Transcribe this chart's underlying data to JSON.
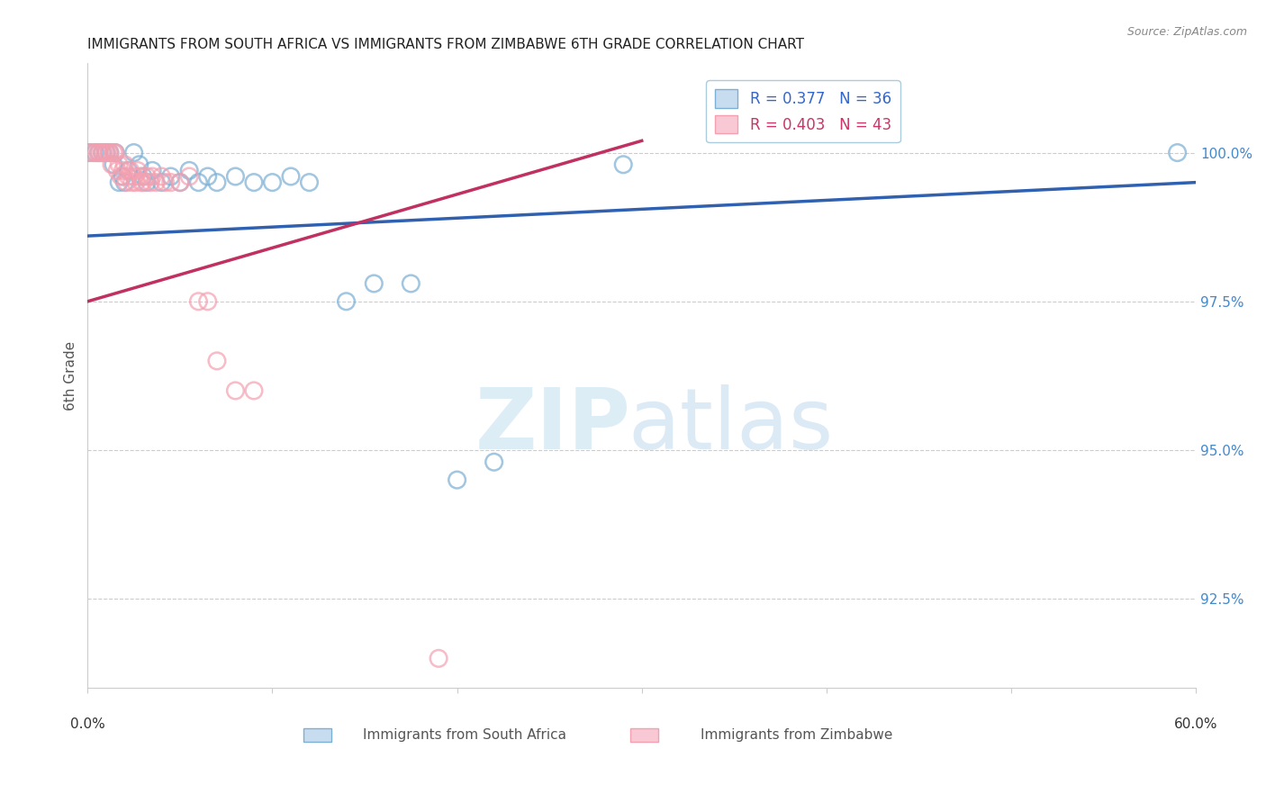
{
  "title": "IMMIGRANTS FROM SOUTH AFRICA VS IMMIGRANTS FROM ZIMBABWE 6TH GRADE CORRELATION CHART",
  "source": "Source: ZipAtlas.com",
  "ylabel": "6th Grade",
  "ytick_labels": [
    "92.5%",
    "95.0%",
    "97.5%",
    "100.0%"
  ],
  "ytick_values": [
    92.5,
    95.0,
    97.5,
    100.0
  ],
  "xmin": 0.0,
  "xmax": 60.0,
  "ymin": 91.0,
  "ymax": 101.5,
  "legend_blue_text": "R = 0.377   N = 36",
  "legend_pink_text": "R = 0.403   N = 43",
  "blue_color": "#7BAFD4",
  "pink_color": "#F4A0B0",
  "blue_line_color": "#3060B0",
  "pink_line_color": "#C03060",
  "blue_scatter": [
    [
      0.1,
      100.0
    ],
    [
      0.4,
      100.0
    ],
    [
      0.6,
      100.0
    ],
    [
      0.8,
      100.0
    ],
    [
      1.0,
      100.0
    ],
    [
      1.2,
      100.0
    ],
    [
      1.4,
      99.8
    ],
    [
      1.5,
      100.0
    ],
    [
      1.7,
      99.5
    ],
    [
      1.9,
      99.6
    ],
    [
      2.0,
      99.5
    ],
    [
      2.2,
      99.7
    ],
    [
      2.5,
      100.0
    ],
    [
      2.8,
      99.8
    ],
    [
      3.0,
      99.6
    ],
    [
      3.2,
      99.5
    ],
    [
      3.5,
      99.7
    ],
    [
      4.0,
      99.5
    ],
    [
      4.5,
      99.6
    ],
    [
      5.0,
      99.5
    ],
    [
      5.5,
      99.7
    ],
    [
      6.0,
      99.5
    ],
    [
      6.5,
      99.6
    ],
    [
      7.0,
      99.5
    ],
    [
      8.0,
      99.6
    ],
    [
      9.0,
      99.5
    ],
    [
      10.0,
      99.5
    ],
    [
      11.0,
      99.6
    ],
    [
      12.0,
      99.5
    ],
    [
      14.0,
      97.5
    ],
    [
      15.5,
      97.8
    ],
    [
      17.5,
      97.8
    ],
    [
      20.0,
      94.5
    ],
    [
      22.0,
      94.8
    ],
    [
      29.0,
      99.8
    ],
    [
      59.0,
      100.0
    ]
  ],
  "pink_scatter": [
    [
      0.1,
      100.0
    ],
    [
      0.3,
      100.0
    ],
    [
      0.5,
      100.0
    ],
    [
      0.6,
      100.0
    ],
    [
      0.7,
      100.0
    ],
    [
      0.8,
      100.0
    ],
    [
      0.9,
      100.0
    ],
    [
      1.0,
      100.0
    ],
    [
      1.1,
      100.0
    ],
    [
      1.2,
      100.0
    ],
    [
      1.3,
      99.8
    ],
    [
      1.4,
      100.0
    ],
    [
      1.5,
      100.0
    ],
    [
      1.6,
      99.7
    ],
    [
      1.7,
      99.8
    ],
    [
      1.8,
      99.6
    ],
    [
      1.9,
      99.7
    ],
    [
      2.0,
      99.8
    ],
    [
      2.1,
      99.5
    ],
    [
      2.2,
      99.6
    ],
    [
      2.3,
      99.7
    ],
    [
      2.4,
      99.5
    ],
    [
      2.5,
      99.6
    ],
    [
      2.6,
      99.5
    ],
    [
      2.7,
      99.7
    ],
    [
      2.8,
      99.6
    ],
    [
      2.9,
      99.5
    ],
    [
      3.0,
      99.5
    ],
    [
      3.2,
      99.6
    ],
    [
      3.4,
      99.5
    ],
    [
      3.5,
      99.6
    ],
    [
      3.7,
      99.5
    ],
    [
      4.0,
      99.6
    ],
    [
      4.2,
      99.5
    ],
    [
      4.5,
      99.5
    ],
    [
      5.0,
      99.5
    ],
    [
      5.5,
      99.6
    ],
    [
      6.0,
      97.5
    ],
    [
      6.5,
      97.5
    ],
    [
      7.0,
      96.5
    ],
    [
      8.0,
      96.0
    ],
    [
      9.0,
      96.0
    ],
    [
      19.0,
      91.5
    ]
  ],
  "blue_line_x": [
    0.0,
    60.0
  ],
  "blue_line_y": [
    98.6,
    99.5
  ],
  "pink_line_x": [
    0.0,
    30.0
  ],
  "pink_line_y": [
    97.5,
    100.2
  ]
}
